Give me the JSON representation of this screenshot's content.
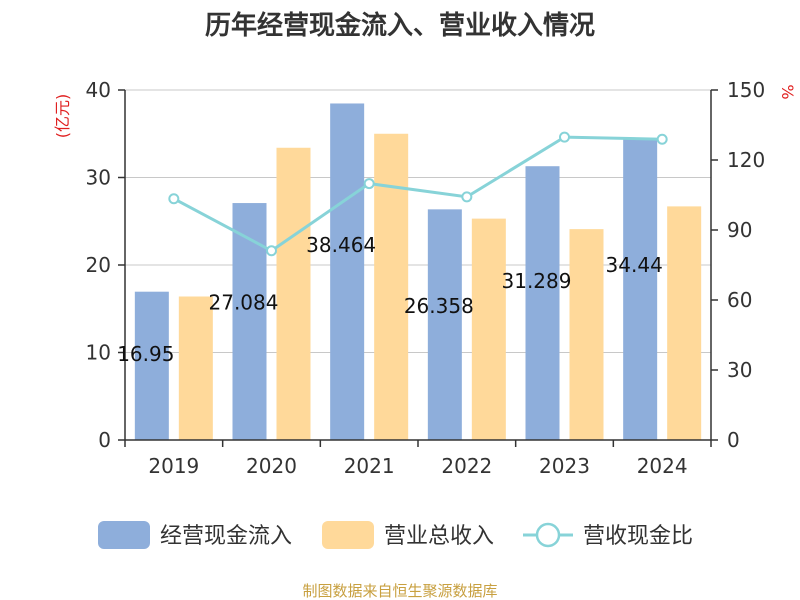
{
  "chart_data": {
    "type": "bar",
    "title": "历年经营现金流入、营业收入情况",
    "categories": [
      "2019",
      "2020",
      "2021",
      "2022",
      "2023",
      "2024"
    ],
    "y_left_label": "(亿元)",
    "y_right_label": "%",
    "y_left_range": [
      0,
      40
    ],
    "y_left_ticks": [
      "0",
      "10",
      "20",
      "30",
      "40"
    ],
    "y_right_range": [
      0,
      150
    ],
    "y_right_ticks": [
      "0",
      "30",
      "60",
      "90",
      "120",
      "150"
    ],
    "grid": true,
    "legend_position": "bottom",
    "series": [
      {
        "name": "经营现金流入",
        "kind": "bar",
        "axis": "left",
        "color": "#8eaedb",
        "values": [
          16.95,
          27.08,
          38.46,
          26.36,
          31.29,
          34.44
        ],
        "labels": [
          "16.95",
          "27.084",
          "38.464",
          "26.358",
          "31.289",
          "34.44"
        ]
      },
      {
        "name": "营业总收入",
        "kind": "bar",
        "axis": "left",
        "color": "#ffd99a",
        "values": [
          16.4,
          33.4,
          35.0,
          25.3,
          24.1,
          26.7
        ]
      },
      {
        "name": "营收现金比",
        "kind": "line",
        "axis": "right",
        "color": "#87d3d8",
        "values": [
          103.4,
          81.1,
          109.9,
          104.2,
          129.8,
          128.9
        ]
      }
    ],
    "source": "制图数据来自恒生聚源数据库",
    "colors": {
      "axis_label_red": "#e02020",
      "source_text": "#c8a040"
    }
  }
}
